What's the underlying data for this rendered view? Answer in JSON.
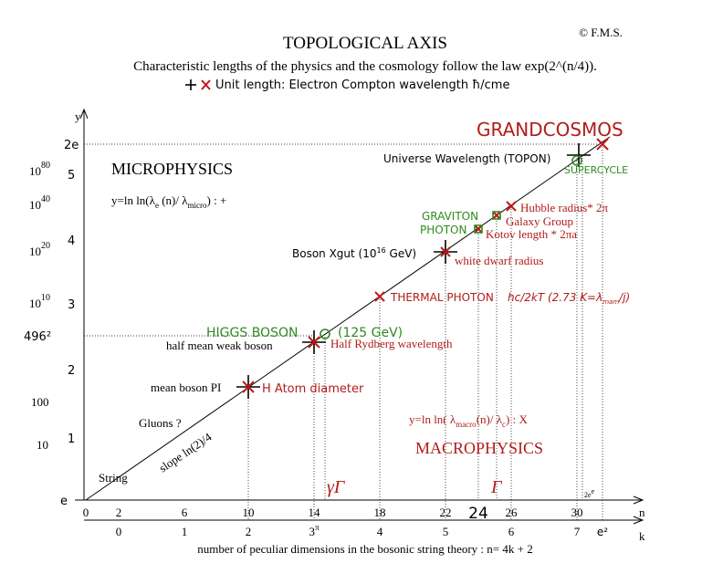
{
  "header": {
    "title": "TOPOLOGICAL AXIS",
    "subtitle": "Characteristic lengths of the physics and the cosmology follow the law  exp(2^(n/4)).",
    "unit_legend": "Unit  length: Electron Compton wavelength ħ/cme",
    "copyright": "© F.M.S."
  },
  "axes": {
    "y_label": "y",
    "n_label": "n",
    "k_label": "k",
    "k_caption": "number of peculiar dimensions in the bosonic string theory  : n= 4k + 2",
    "n_ticks": [
      "0",
      "2",
      "6",
      "10",
      "14",
      "18",
      "22",
      "24",
      "26",
      "30"
    ],
    "k_ticks": [
      "0",
      "1",
      "2",
      "3",
      "4",
      "5",
      "6",
      "7",
      "e²"
    ],
    "k3_sup": "π",
    "ee_label": "2e",
    "ee_sup": "e",
    "y_ticks": [
      "e",
      "1",
      "2",
      "3",
      "4",
      "5",
      "2e"
    ],
    "left_ticks": [
      "10",
      "100",
      "496²",
      "10",
      "10",
      "10",
      "10"
    ],
    "left_sups": [
      "10",
      "20",
      "40",
      "80"
    ]
  },
  "regions": {
    "micro": "MICROPHYSICS",
    "macro": "MACROPHYSICS",
    "grand": "GRANDCOSMOS"
  },
  "formulas": {
    "micro": [
      "y=ln ln(λ",
      "e",
      " (n)/ λ",
      "micro",
      ") : +"
    ],
    "macro": [
      "y=ln ln( λ",
      "macro",
      "(n)/ λ",
      "c",
      ") : X"
    ]
  },
  "annotations": {
    "string": "String",
    "slope": "slope ln(2)/4",
    "gluons": "Gluons ?",
    "mean_boson": "mean boson PI",
    "h_atom": "H Atom diameter",
    "half_weak": "half mean weak boson",
    "rydberg": "Half Rydberg wavelength",
    "higgs": "HIGGS BOSON",
    "higgs_energy": "(125 GeV)",
    "thermal": "THERMAL PHOTON",
    "thermal_formula": [
      "hc/2kT (2.73 K=λ",
      "mam",
      "/j)"
    ],
    "xgut": [
      "Boson Xgut (10",
      "16",
      " GeV)"
    ],
    "white_dwarf": "white dwarf radius",
    "graviton": "GRAVITON",
    "photon": "PHOTON",
    "galaxy": "Galaxy Group",
    "kotov": "Kotov length * 2πa",
    "hubble": "Hubble radius* 2π",
    "universe": "Universe Wavelength (TOPON)",
    "supercycle": "SUPERCYCLE",
    "gamma_gamma": "γΓ",
    "gamma": "Γ"
  }
}
